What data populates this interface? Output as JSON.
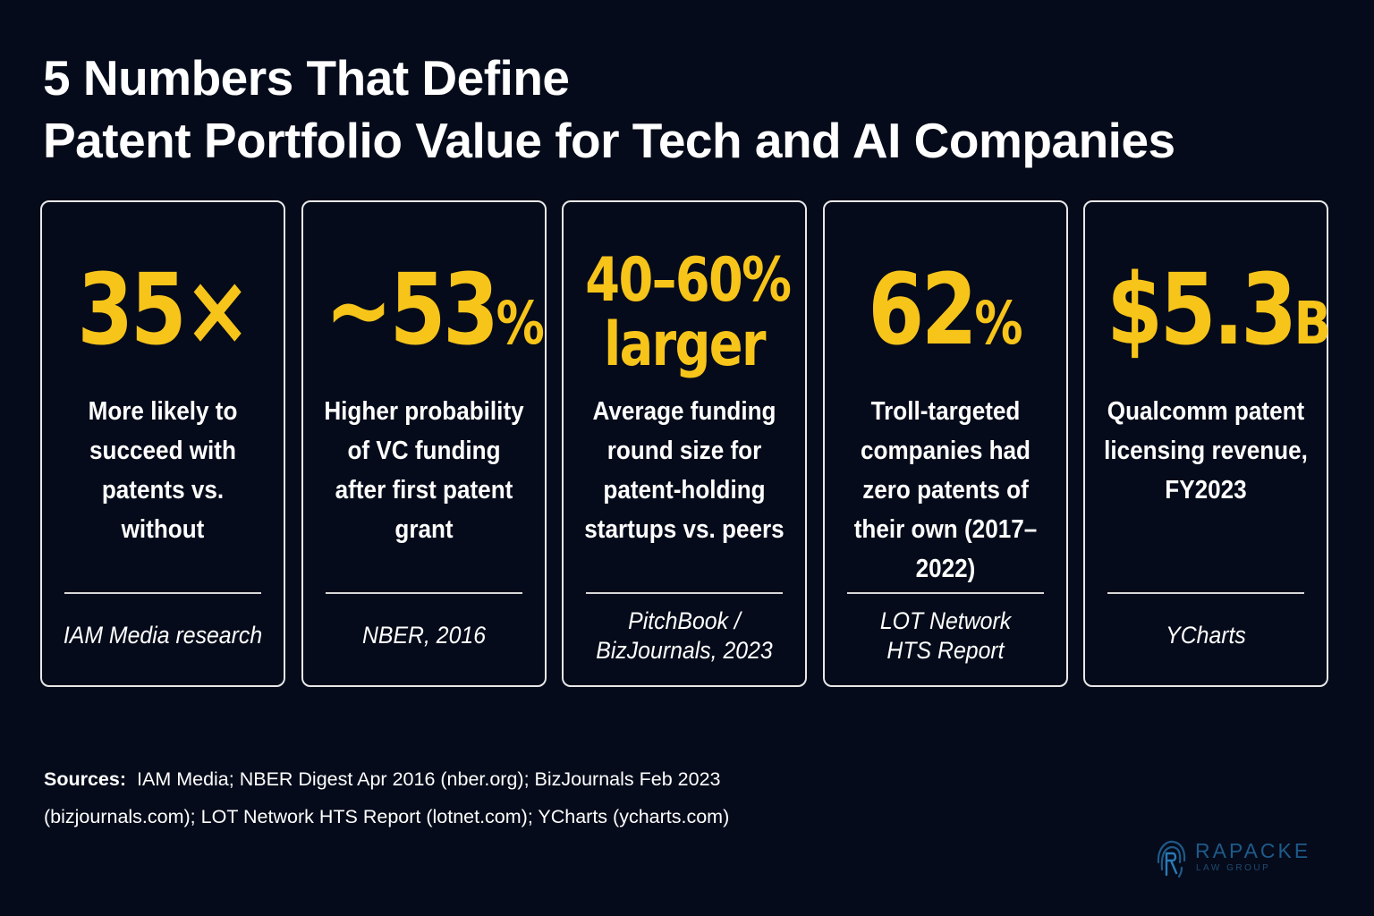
{
  "title": {
    "line1": "5 Numbers That Define",
    "line2": "Patent Portfolio Value for Tech and AI Companies"
  },
  "cards": [
    {
      "stat": "35×",
      "description": "More likely to succeed with patents vs. without",
      "source": "IAM Media research"
    },
    {
      "stat_main": "~53",
      "stat_unit": "%",
      "description": "Higher probability of VC funding after first patent grant",
      "source": "NBER, 2016"
    },
    {
      "stat_line1": "40–60%",
      "stat_line2": "larger",
      "description": "Average funding round size for patent-holding startups vs. peers",
      "source_line1": "PitchBook /",
      "source_line2": "BizJournals, 2023"
    },
    {
      "stat_main": "62",
      "stat_unit": "%",
      "description": "Troll-targeted companies had zero patents of their own (2017–2022)",
      "source_line1": "LOT Network",
      "source_line2": "HTS Report"
    },
    {
      "stat_main": "$5.3",
      "stat_unit": "B",
      "description": "Qualcomm patent licensing revenue, FY2023",
      "source": "YCharts"
    }
  ],
  "sources_note": {
    "label": "Sources:",
    "text": "IAM Media; NBER Digest Apr 2016 (nber.org); BizJournals Feb 2023 (bizjournals.com); LOT Network HTS Report (lotnet.com); YCharts (ycharts.com)"
  },
  "logo": {
    "name": "RAPACKE",
    "subtitle": "LAW GROUP",
    "icon": "fingerprint-r-icon"
  },
  "colors": {
    "background": "#050b1a",
    "accent": "#f7c41a",
    "text": "#ffffff",
    "card_border": "#e8e8e8",
    "logo": "#1e5a8a"
  }
}
